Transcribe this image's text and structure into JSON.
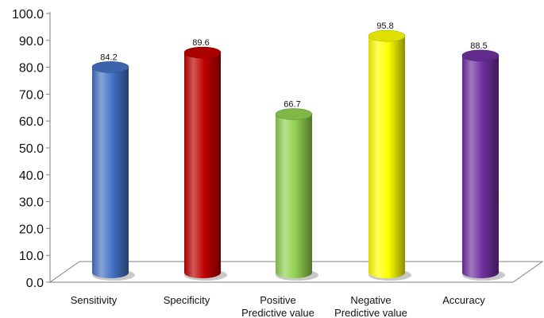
{
  "chart_data": {
    "type": "bar",
    "style": "3d-cylinder",
    "categories": [
      [
        "Sensitivity"
      ],
      [
        "Specificity"
      ],
      [
        "Positive",
        "Predictive value"
      ],
      [
        "Negative",
        "Predictive value"
      ],
      [
        "Accuracy"
      ]
    ],
    "values": [
      84.2,
      89.6,
      66.7,
      95.8,
      88.5
    ],
    "data_labels": [
      "84.2",
      "89.6",
      "66.7",
      "95.8",
      "88.5"
    ],
    "yticks": [
      "0.0",
      "10.0",
      "20.0",
      "30.0",
      "40.0",
      "50.0",
      "60.0",
      "70.0",
      "80.0",
      "90.0",
      "100.0"
    ],
    "ylim": [
      0,
      100
    ],
    "grid": false,
    "colors": [
      "#4472C4",
      "#C00000",
      "#92D050",
      "#FFFF00",
      "#7030A0"
    ]
  }
}
